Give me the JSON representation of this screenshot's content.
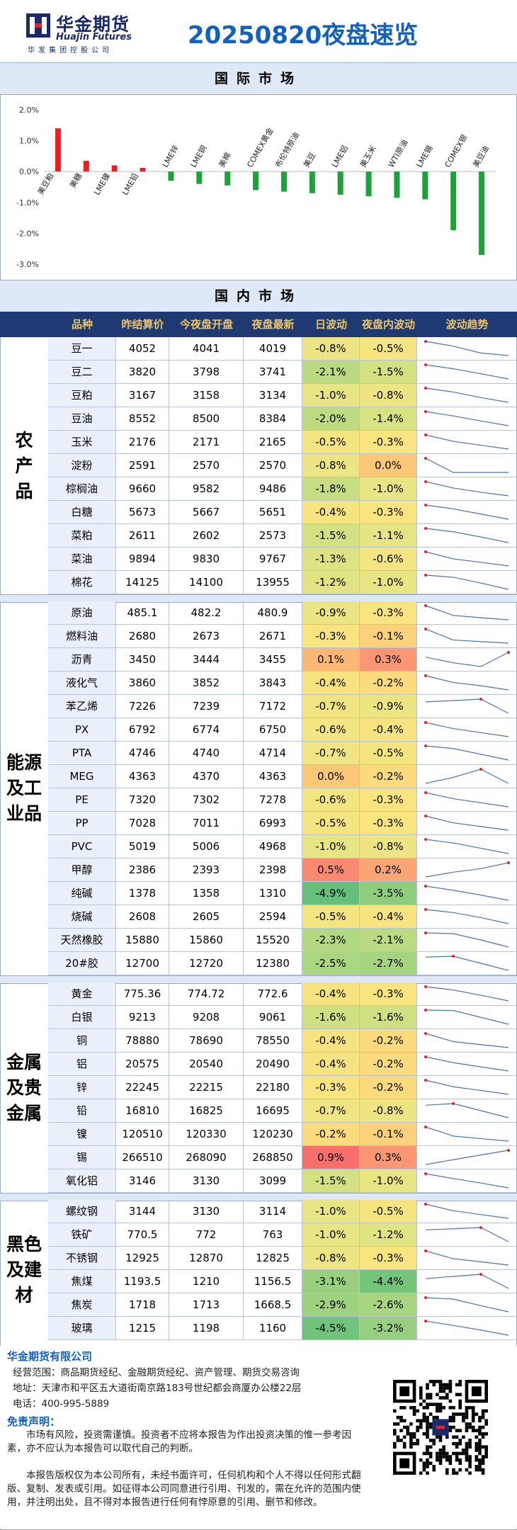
{
  "header": {
    "company_cn": "华金期货",
    "company_en": "Huajin Futures",
    "company_sub": "华发集团控股公司",
    "report_title": "20250820夜盘速览"
  },
  "international_title": "国际市场",
  "domestic_title": "国内市场",
  "colors": {
    "up": "#e8202a",
    "down": "#1da23a",
    "header_bg": "#1f3a73",
    "header_text": "#e9c46a",
    "band": "#dfe8f6"
  },
  "chart_data": {
    "type": "bar",
    "categories": [
      "美豆粕",
      "美糖",
      "LME镍",
      "LME铅",
      "LME锌",
      "LME铜",
      "美棉",
      "COMEX黄金",
      "布伦特原油",
      "美豆",
      "LME铝",
      "美玉米",
      "WTI原油",
      "LME锡",
      "COMEX银",
      "美豆油"
    ],
    "values": [
      1.4,
      0.35,
      0.2,
      0.12,
      -0.3,
      -0.4,
      -0.45,
      -0.6,
      -0.65,
      -0.7,
      -0.75,
      -0.8,
      -0.85,
      -0.9,
      -1.9,
      -2.7
    ],
    "ylim": [
      -3.0,
      2.0
    ],
    "yticks": [
      "2.0%",
      "1.0%",
      "0.0%",
      "-1.0%",
      "-2.0%",
      "-3.0%"
    ],
    "grid": false,
    "legend": "none"
  },
  "table": {
    "headers": [
      "品种",
      "昨结算价",
      "今夜盘开盘",
      "夜盘最新",
      "日波动",
      "夜盘内波动",
      "波动趋势"
    ],
    "groups": [
      {
        "label": "农产品",
        "rows": [
          {
            "name": "豆一",
            "y": "4052",
            "o": "4041",
            "l": "4019",
            "d": "-0.8%",
            "n": "-0.5%",
            "dv": -0.8,
            "nv": -0.5,
            "trend": [
              4052,
              4041,
              4025,
              4019
            ]
          },
          {
            "name": "豆二",
            "y": "3820",
            "o": "3798",
            "l": "3741",
            "d": "-2.1%",
            "n": "-1.5%",
            "dv": -2.1,
            "nv": -1.5,
            "trend": [
              3820,
              3798,
              3770,
              3741
            ]
          },
          {
            "name": "豆粕",
            "y": "3167",
            "o": "3158",
            "l": "3134",
            "d": "-1.0%",
            "n": "-0.8%",
            "dv": -1.0,
            "nv": -0.8,
            "trend": [
              3167,
              3158,
              3145,
              3134
            ]
          },
          {
            "name": "豆油",
            "y": "8552",
            "o": "8500",
            "l": "8384",
            "d": "-2.0%",
            "n": "-1.4%",
            "dv": -2.0,
            "nv": -1.4,
            "trend": [
              8552,
              8500,
              8440,
              8384
            ]
          },
          {
            "name": "玉米",
            "y": "2176",
            "o": "2171",
            "l": "2165",
            "d": "-0.5%",
            "n": "-0.3%",
            "dv": -0.5,
            "nv": -0.3,
            "trend": [
              2176,
              2171,
              2168,
              2165
            ]
          },
          {
            "name": "淀粉",
            "y": "2591",
            "o": "2570",
            "l": "2570",
            "d": "-0.8%",
            "n": "0.0%",
            "dv": -0.8,
            "nv": 0.0,
            "trend": [
              2591,
              2570,
              2570,
              2570
            ]
          },
          {
            "name": "棕榈油",
            "y": "9660",
            "o": "9582",
            "l": "9486",
            "d": "-1.8%",
            "n": "-1.0%",
            "dv": -1.8,
            "nv": -1.0,
            "trend": [
              9660,
              9582,
              9530,
              9486
            ]
          },
          {
            "name": "白糖",
            "y": "5673",
            "o": "5667",
            "l": "5651",
            "d": "-0.4%",
            "n": "-0.3%",
            "dv": -0.4,
            "nv": -0.3,
            "trend": [
              5673,
              5667,
              5659,
              5651
            ]
          },
          {
            "name": "菜粕",
            "y": "2611",
            "o": "2602",
            "l": "2573",
            "d": "-1.5%",
            "n": "-1.1%",
            "dv": -1.5,
            "nv": -1.1,
            "trend": [
              2611,
              2602,
              2588,
              2573
            ]
          },
          {
            "name": "菜油",
            "y": "9894",
            "o": "9830",
            "l": "9767",
            "d": "-1.3%",
            "n": "-0.6%",
            "dv": -1.3,
            "nv": -0.6,
            "trend": [
              9894,
              9830,
              9800,
              9767
            ]
          },
          {
            "name": "棉花",
            "y": "14125",
            "o": "14100",
            "l": "13955",
            "d": "-1.2%",
            "n": "-1.0%",
            "dv": -1.2,
            "nv": -1.0,
            "trend": [
              14125,
              14100,
              14030,
              13955
            ]
          }
        ]
      },
      {
        "label": "能源及工业品",
        "rows": [
          {
            "name": "原油",
            "y": "485.1",
            "o": "482.2",
            "l": "480.9",
            "d": "-0.9%",
            "n": "-0.3%",
            "dv": -0.9,
            "nv": -0.3,
            "trend": [
              485.1,
              482.2,
              481.5,
              480.9
            ]
          },
          {
            "name": "燃料油",
            "y": "2680",
            "o": "2673",
            "l": "2671",
            "d": "-0.3%",
            "n": "-0.1%",
            "dv": -0.3,
            "nv": -0.1,
            "trend": [
              2680,
              2673,
              2672,
              2671
            ]
          },
          {
            "name": "沥青",
            "y": "3450",
            "o": "3444",
            "l": "3455",
            "d": "0.1%",
            "n": "0.3%",
            "dv": 0.1,
            "nv": 0.3,
            "trend": [
              3450,
              3444,
              3440,
              3455
            ]
          },
          {
            "name": "液化气",
            "y": "3860",
            "o": "3852",
            "l": "3843",
            "d": "-0.4%",
            "n": "-0.2%",
            "dv": -0.4,
            "nv": -0.2,
            "trend": [
              3860,
              3852,
              3848,
              3843
            ]
          },
          {
            "name": "苯乙烯",
            "y": "7226",
            "o": "7239",
            "l": "7172",
            "d": "-0.7%",
            "n": "-0.9%",
            "dv": -0.7,
            "nv": -0.9,
            "trend": [
              7226,
              7232,
              7239,
              7172
            ]
          },
          {
            "name": "PX",
            "y": "6792",
            "o": "6774",
            "l": "6750",
            "d": "-0.6%",
            "n": "-0.4%",
            "dv": -0.6,
            "nv": -0.4,
            "trend": [
              6792,
              6774,
              6762,
              6750
            ]
          },
          {
            "name": "PTA",
            "y": "4746",
            "o": "4740",
            "l": "4714",
            "d": "-0.7%",
            "n": "-0.5%",
            "dv": -0.7,
            "nv": -0.5,
            "trend": [
              4746,
              4740,
              4727,
              4714
            ]
          },
          {
            "name": "MEG",
            "y": "4363",
            "o": "4370",
            "l": "4363",
            "d": "0.0%",
            "n": "-0.2%",
            "dv": 0.0,
            "nv": -0.2,
            "trend": [
              4363,
              4366,
              4370,
              4363
            ]
          },
          {
            "name": "PE",
            "y": "7320",
            "o": "7302",
            "l": "7278",
            "d": "-0.6%",
            "n": "-0.3%",
            "dv": -0.6,
            "nv": -0.3,
            "trend": [
              7320,
              7302,
              7290,
              7278
            ]
          },
          {
            "name": "PP",
            "y": "7028",
            "o": "7011",
            "l": "6993",
            "d": "-0.5%",
            "n": "-0.3%",
            "dv": -0.5,
            "nv": -0.3,
            "trend": [
              7028,
              7011,
              7002,
              6993
            ]
          },
          {
            "name": "PVC",
            "y": "5019",
            "o": "5006",
            "l": "4968",
            "d": "-1.0%",
            "n": "-0.8%",
            "dv": -1.0,
            "nv": -0.8,
            "trend": [
              5019,
              5006,
              4987,
              4968
            ]
          },
          {
            "name": "甲醇",
            "y": "2386",
            "o": "2393",
            "l": "2398",
            "d": "0.5%",
            "n": "0.2%",
            "dv": 0.5,
            "nv": 0.2,
            "trend": [
              2386,
              2390,
              2393,
              2398
            ]
          },
          {
            "name": "纯碱",
            "y": "1378",
            "o": "1358",
            "l": "1310",
            "d": "-4.9%",
            "n": "-3.5%",
            "dv": -4.9,
            "nv": -3.5,
            "trend": [
              1378,
              1358,
              1335,
              1310
            ]
          },
          {
            "name": "烧碱",
            "y": "2608",
            "o": "2605",
            "l": "2594",
            "d": "-0.5%",
            "n": "-0.4%",
            "dv": -0.5,
            "nv": -0.4,
            "trend": [
              2608,
              2605,
              2600,
              2594
            ]
          },
          {
            "name": "天然橡胶",
            "y": "15880",
            "o": "15860",
            "l": "15520",
            "d": "-2.3%",
            "n": "-2.1%",
            "dv": -2.3,
            "nv": -2.1,
            "trend": [
              15880,
              15860,
              15700,
              15520
            ]
          },
          {
            "name": "20#胶",
            "y": "12700",
            "o": "12720",
            "l": "12380",
            "d": "-2.5%",
            "n": "-2.7%",
            "dv": -2.5,
            "nv": -2.7,
            "trend": [
              12700,
              12720,
              12550,
              12380
            ]
          }
        ]
      },
      {
        "label": "金属及贵金属",
        "rows": [
          {
            "name": "黄金",
            "y": "775.36",
            "o": "774.72",
            "l": "772.6",
            "d": "-0.4%",
            "n": "-0.3%",
            "dv": -0.4,
            "nv": -0.3,
            "trend": [
              775.36,
              774.72,
              773.7,
              772.6
            ]
          },
          {
            "name": "白银",
            "y": "9213",
            "o": "9208",
            "l": "9061",
            "d": "-1.6%",
            "n": "-1.6%",
            "dv": -1.6,
            "nv": -1.6,
            "trend": [
              9213,
              9208,
              9135,
              9061
            ]
          },
          {
            "name": "铜",
            "y": "78880",
            "o": "78690",
            "l": "78550",
            "d": "-0.4%",
            "n": "-0.2%",
            "dv": -0.4,
            "nv": -0.2,
            "trend": [
              78880,
              78690,
              78620,
              78550
            ]
          },
          {
            "name": "铝",
            "y": "20575",
            "o": "20540",
            "l": "20490",
            "d": "-0.4%",
            "n": "-0.2%",
            "dv": -0.4,
            "nv": -0.2,
            "trend": [
              20575,
              20540,
              20515,
              20490
            ]
          },
          {
            "name": "锌",
            "y": "22245",
            "o": "22215",
            "l": "22180",
            "d": "-0.3%",
            "n": "-0.2%",
            "dv": -0.3,
            "nv": -0.2,
            "trend": [
              22245,
              22215,
              22198,
              22180
            ]
          },
          {
            "name": "铅",
            "y": "16810",
            "o": "16825",
            "l": "16695",
            "d": "-0.7%",
            "n": "-0.8%",
            "dv": -0.7,
            "nv": -0.8,
            "trend": [
              16810,
              16825,
              16760,
              16695
            ]
          },
          {
            "name": "镍",
            "y": "120510",
            "o": "120330",
            "l": "120230",
            "d": "-0.2%",
            "n": "-0.1%",
            "dv": -0.2,
            "nv": -0.1,
            "trend": [
              120510,
              120330,
              120280,
              120230
            ]
          },
          {
            "name": "锡",
            "y": "266510",
            "o": "268090",
            "l": "268850",
            "d": "0.9%",
            "n": "0.3%",
            "dv": 0.9,
            "nv": 0.3,
            "trend": [
              266510,
              267300,
              268090,
              268850
            ]
          },
          {
            "name": "氧化铝",
            "y": "3146",
            "o": "3130",
            "l": "3099",
            "d": "-1.5%",
            "n": "-1.0%",
            "dv": -1.5,
            "nv": -1.0,
            "trend": [
              3146,
              3130,
              3115,
              3099
            ]
          }
        ]
      },
      {
        "label": "黑色及建材",
        "rows": [
          {
            "name": "螺纹钢",
            "y": "3144",
            "o": "3130",
            "l": "3114",
            "d": "-1.0%",
            "n": "-0.5%",
            "dv": -1.0,
            "nv": -0.5,
            "trend": [
              3144,
              3130,
              3122,
              3114
            ]
          },
          {
            "name": "铁矿",
            "y": "770.5",
            "o": "772",
            "l": "763",
            "d": "-1.0%",
            "n": "-1.2%",
            "dv": -1.0,
            "nv": -1.2,
            "trend": [
              770.5,
              771.2,
              772,
              763
            ]
          },
          {
            "name": "不锈钢",
            "y": "12925",
            "o": "12870",
            "l": "12825",
            "d": "-0.8%",
            "n": "-0.3%",
            "dv": -0.8,
            "nv": -0.3,
            "trend": [
              12925,
              12870,
              12848,
              12825
            ]
          },
          {
            "name": "焦煤",
            "y": "1193.5",
            "o": "1210",
            "l": "1156.5",
            "d": "-3.1%",
            "n": "-4.4%",
            "dv": -3.1,
            "nv": -4.4,
            "trend": [
              1193.5,
              1202,
              1210,
              1156.5
            ]
          },
          {
            "name": "焦炭",
            "y": "1718",
            "o": "1713",
            "l": "1668.5",
            "d": "-2.9%",
            "n": "-2.6%",
            "dv": -2.9,
            "nv": -2.6,
            "trend": [
              1718,
              1713,
              1690,
              1668.5
            ]
          },
          {
            "name": "玻璃",
            "y": "1215",
            "o": "1198",
            "l": "1160",
            "d": "-4.5%",
            "n": "-3.2%",
            "dv": -4.5,
            "nv": -3.2,
            "trend": [
              1215,
              1198,
              1180,
              1160
            ]
          }
        ]
      }
    ]
  },
  "footer": {
    "company": "华金期货有限公司",
    "scope": "经营范围：商品期货经纪、金融期货经纪、资产管理、期货交易咨询",
    "address": "地址：天津市和平区五大道街南京路183号世纪都会商厦办公楼22层",
    "phone": "电话：400-995-5889",
    "disclaimer_title": "免责声明：",
    "p1": "市场有风险，投资需谨慎。投资者不应将本报告为作出投资决策的惟一参考因素，亦不应认为本报告可以取代自己的判断。",
    "p2": "本报告版权仅为本公司所有，未经书面许可，任何机构和个人不得以任何形式翻版、复制、发表或引用。如征得本公司同意进行引用、刊发的，需在允许的范围内使用，并注明出处，且不得对本报告进行任何有悖原意的引用、删节和修改。"
  }
}
